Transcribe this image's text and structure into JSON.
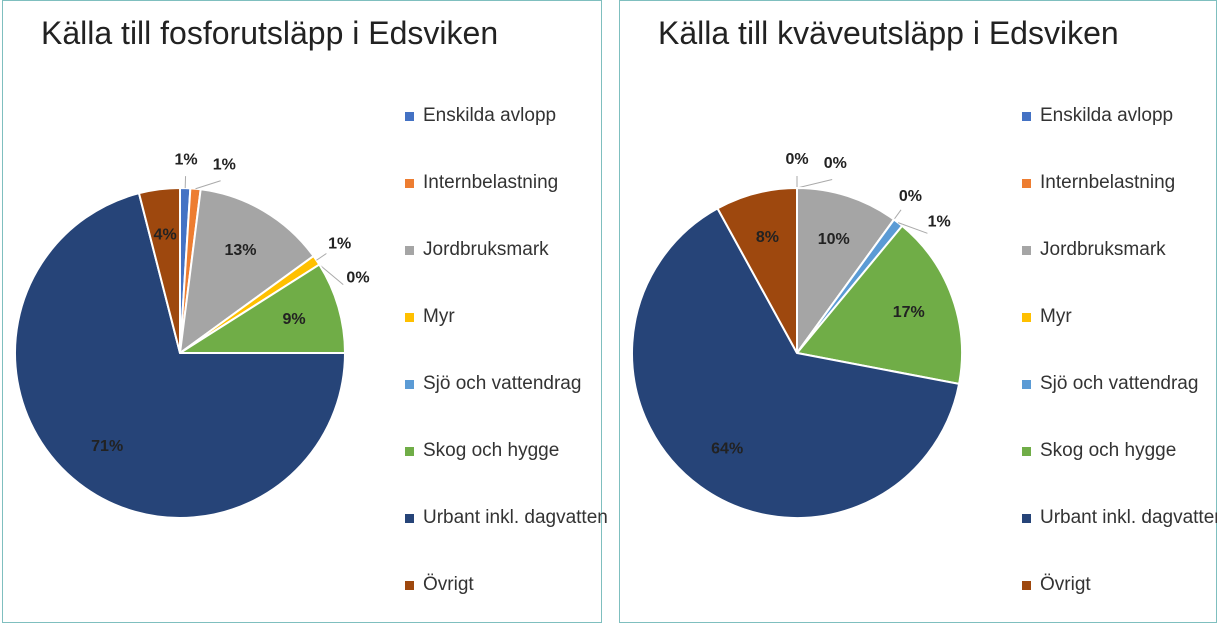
{
  "chart_data": [
    {
      "type": "pie",
      "title": "Källa till fosforutsläpp i Edsviken",
      "categories": [
        "Enskilda avlopp",
        "Internbelastning",
        "Jordbruksmark",
        "Myr",
        "Sjö och vattendrag",
        "Skog och hygge",
        "Urbant inkl. dagvatten",
        "Övrigt"
      ],
      "values": [
        1,
        1,
        13,
        1,
        0,
        9,
        71,
        4
      ],
      "value_labels": [
        "1%",
        "1%",
        "13%",
        "1%",
        "0%",
        "9%",
        "71%",
        "4%"
      ],
      "colors": [
        "#4472c4",
        "#ed7d31",
        "#a5a5a5",
        "#ffc000",
        "#5b9bd5",
        "#70ad47",
        "#264478",
        "#9e480e"
      ]
    },
    {
      "type": "pie",
      "title": "Källa till kväveutsläpp i Edsviken",
      "categories": [
        "Enskilda avlopp",
        "Internbelastning",
        "Jordbruksmark",
        "Myr",
        "Sjö och vattendrag",
        "Skog och hygge",
        "Urbant inkl. dagvatten",
        "Övrigt"
      ],
      "values": [
        0,
        0,
        10,
        0,
        1,
        17,
        64,
        8
      ],
      "value_labels": [
        "0%",
        "0%",
        "10%",
        "0%",
        "1%",
        "17%",
        "64%",
        "8%"
      ],
      "colors": [
        "#4472c4",
        "#ed7d31",
        "#a5a5a5",
        "#ffc000",
        "#5b9bd5",
        "#70ad47",
        "#264478",
        "#9e480e"
      ]
    }
  ]
}
